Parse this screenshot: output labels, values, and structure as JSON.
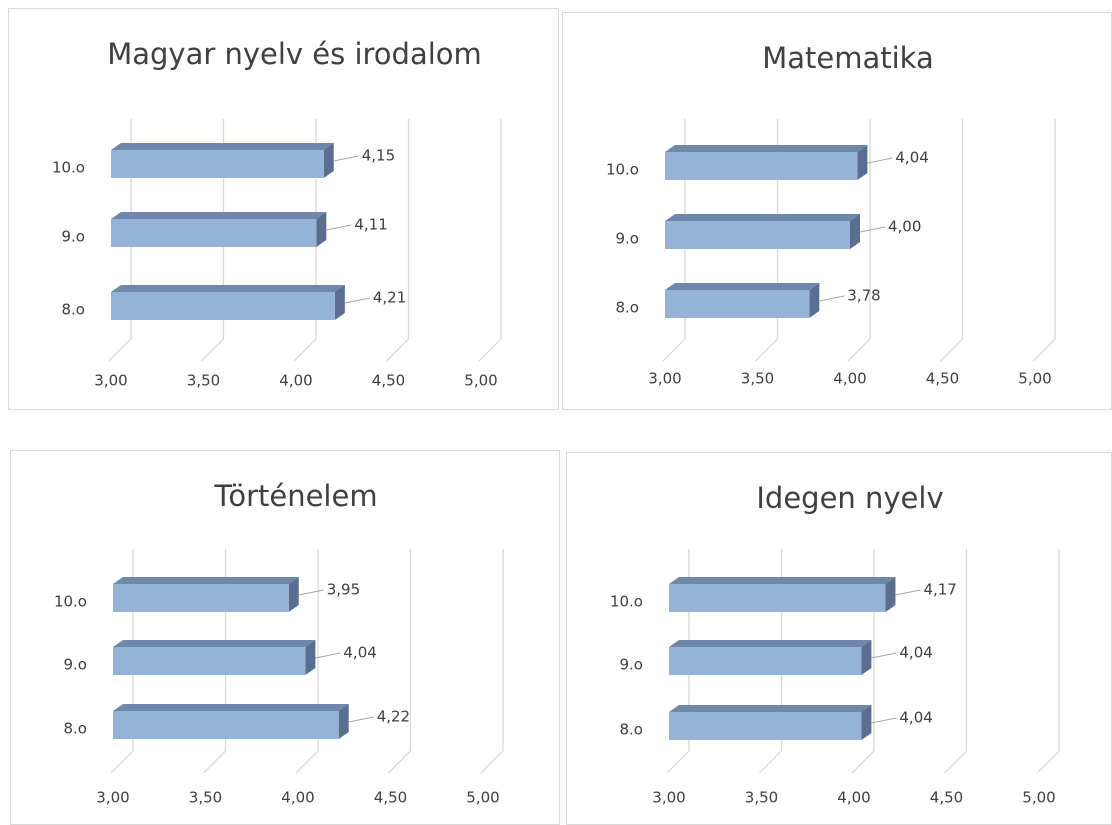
{
  "chart_data": [
    {
      "type": "bar3d",
      "title": "Magyar nyelv és irodalom",
      "categories": [
        "8.o",
        "9.o",
        "10.o"
      ],
      "values": [
        4.21,
        4.11,
        4.15
      ],
      "value_labels": [
        "4,21",
        "4,11",
        "4,15"
      ],
      "color": "#95b3d7",
      "xlim": [
        3,
        5
      ],
      "xticks": [
        {
          "value": 3,
          "label": "3,00"
        },
        {
          "value": 3.5,
          "label": "3,50"
        },
        {
          "value": 4,
          "label": "4,00"
        },
        {
          "value": 4.5,
          "label": "4,50"
        },
        {
          "value": 5,
          "label": "5,00"
        }
      ],
      "grid": true
    },
    {
      "type": "bar3d",
      "title": "Matematika",
      "categories": [
        "8.o",
        "9.o",
        "10.o"
      ],
      "values": [
        3.78,
        4.0,
        4.04
      ],
      "value_labels": [
        "3,78",
        "4,00",
        "4,04"
      ],
      "color": "#95b3d7",
      "xlim": [
        3,
        5
      ],
      "xticks": [
        {
          "value": 3,
          "label": "3,00"
        },
        {
          "value": 3.5,
          "label": "3,50"
        },
        {
          "value": 4,
          "label": "4,00"
        },
        {
          "value": 4.5,
          "label": "4,50"
        },
        {
          "value": 5,
          "label": "5,00"
        }
      ],
      "grid": true
    },
    {
      "type": "bar3d",
      "title": "Történelem",
      "categories": [
        "8.o",
        "9.o",
        "10.o"
      ],
      "values": [
        4.22,
        4.04,
        3.95
      ],
      "value_labels": [
        "4,22",
        "4,04",
        "3,95"
      ],
      "color": "#95b3d7",
      "xlim": [
        3,
        5
      ],
      "xticks": [
        {
          "value": 3,
          "label": "3,00"
        },
        {
          "value": 3.5,
          "label": "3,50"
        },
        {
          "value": 4,
          "label": "4,00"
        },
        {
          "value": 4.5,
          "label": "4,50"
        },
        {
          "value": 5,
          "label": "5,00"
        }
      ],
      "grid": true
    },
    {
      "type": "bar3d",
      "title": "Idegen nyelv",
      "categories": [
        "8.o",
        "9.o",
        "10.o"
      ],
      "values": [
        4.04,
        4.04,
        4.17
      ],
      "value_labels": [
        "4,04",
        "4,04",
        "4,17"
      ],
      "color": "#95b3d7",
      "xlim": [
        3,
        5
      ],
      "xticks": [
        {
          "value": 3,
          "label": "3,00"
        },
        {
          "value": 3.5,
          "label": "3,50"
        },
        {
          "value": 4,
          "label": "4,00"
        },
        {
          "value": 4.5,
          "label": "4,50"
        },
        {
          "value": 5,
          "label": "5,00"
        }
      ],
      "grid": true
    }
  ]
}
